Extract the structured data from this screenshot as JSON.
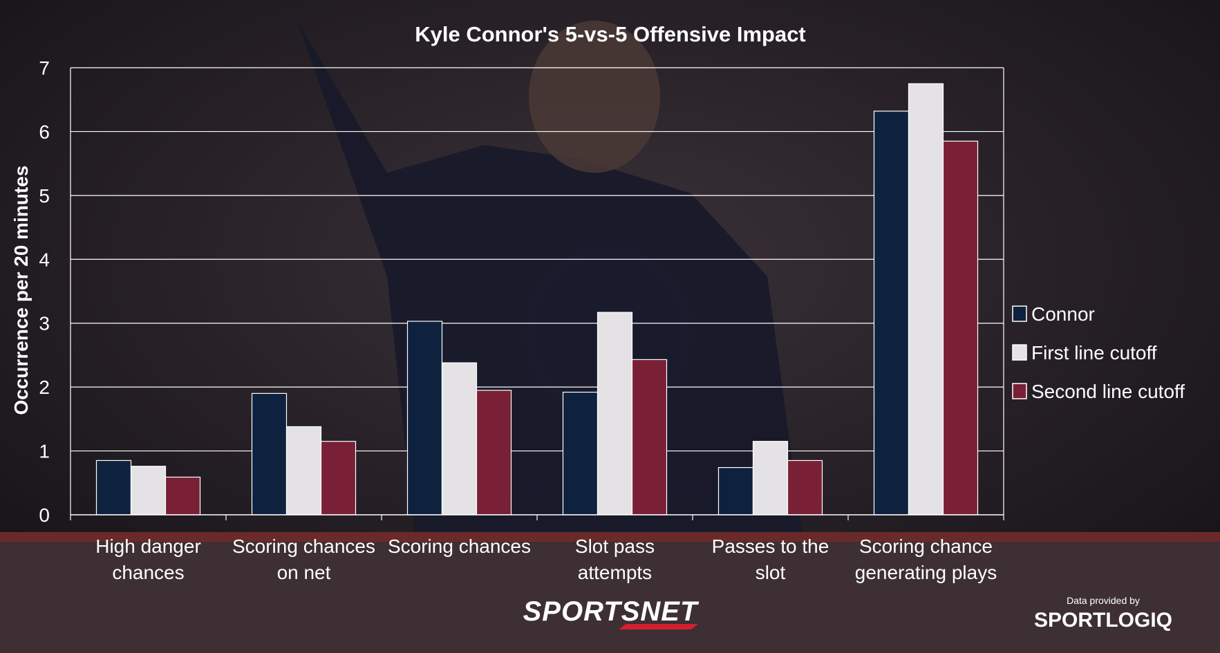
{
  "chart_data": {
    "type": "bar",
    "title": "Kyle Connor's 5-vs-5 Offensive Impact",
    "xlabel": "",
    "ylabel": "Occurrence per 20 minutes",
    "ylim": [
      0,
      7
    ],
    "yticks": [
      "0",
      "1",
      "2",
      "3",
      "4",
      "5",
      "6",
      "7"
    ],
    "grid": true,
    "legend_position": "right",
    "categories": [
      [
        "High danger",
        "chances"
      ],
      [
        "Scoring chances",
        "on net"
      ],
      [
        "Scoring chances"
      ],
      [
        "Slot pass",
        "attempts"
      ],
      [
        "Passes to the",
        "slot"
      ],
      [
        "Scoring chance",
        "generating plays"
      ]
    ],
    "series": [
      {
        "name": "Connor",
        "color": "#0e2240",
        "values": [
          0.85,
          1.9,
          3.03,
          1.92,
          0.74,
          6.32
        ]
      },
      {
        "name": "First line cutoff",
        "color": "#e4e2e4",
        "values": [
          0.76,
          1.38,
          2.38,
          3.17,
          1.15,
          6.75
        ]
      },
      {
        "name": "Second line cutoff",
        "color": "#7a2036",
        "values": [
          0.59,
          1.15,
          1.95,
          2.43,
          0.85,
          5.85
        ]
      }
    ]
  },
  "branding": {
    "sportsnet": "SPORTSNET",
    "data_provided_by": "Data provided by",
    "sportlogiq": "SPORTLOGIQ"
  }
}
